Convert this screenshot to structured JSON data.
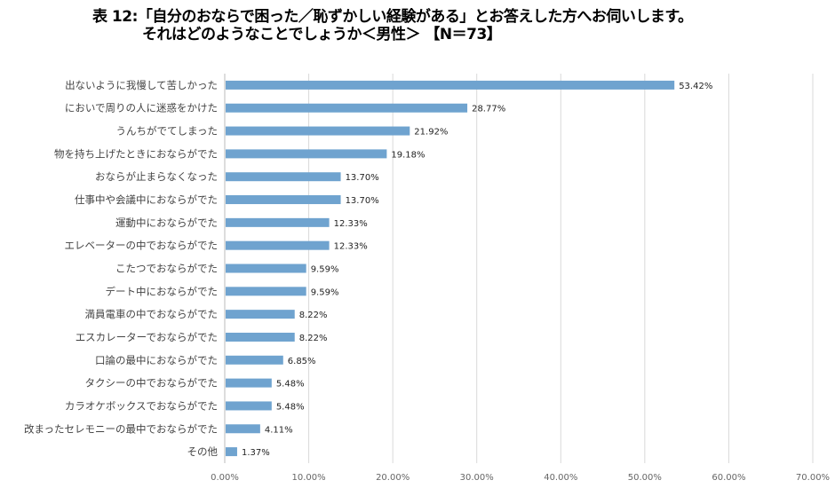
{
  "chart_data": {
    "type": "bar",
    "orientation": "horizontal",
    "title": "表 12:「自分のおならで困った／恥ずかしい経験がある」とお答えした方へお伺いします。",
    "subtitle": "それはどのようなことでしょうか＜男性＞ 【N＝73】",
    "categories": [
      "出ないように我慢して苦しかった",
      "においで周りの人に迷惑をかけた",
      "うんちがでてしまった",
      "物を持ち上げたときにおならがでた",
      "おならが止まらなくなった",
      "仕事中や会議中におならがでた",
      "運動中におならがでた",
      "エレベーターの中でおならがでた",
      "こたつでおならがでた",
      "デート中におならがでた",
      "満員電車の中でおならがでた",
      "エスカレーターでおならがでた",
      "口論の最中におならがでた",
      "タクシーの中でおならがでた",
      "カラオケボックスでおならがでた",
      "改まったセレモニーの最中でおならがでた",
      "その他"
    ],
    "values": [
      53.42,
      28.77,
      21.92,
      19.18,
      13.7,
      13.7,
      12.33,
      12.33,
      9.59,
      9.59,
      8.22,
      8.22,
      6.85,
      5.48,
      5.48,
      4.11,
      1.37
    ],
    "value_labels": [
      "53.42%",
      "28.77%",
      "21.92%",
      "19.18%",
      "13.70%",
      "13.70%",
      "12.33%",
      "12.33%",
      "9.59%",
      "9.59%",
      "8.22%",
      "8.22%",
      "6.85%",
      "5.48%",
      "5.48%",
      "4.11%",
      "1.37%"
    ],
    "xlim": [
      0,
      70
    ],
    "x_ticks": [
      0,
      10,
      20,
      30,
      40,
      50,
      60,
      70
    ],
    "x_tick_labels": [
      "0.00%",
      "10.00%",
      "20.00%",
      "30.00%",
      "40.00%",
      "50.00%",
      "60.00%",
      "70.00%"
    ],
    "grid": true,
    "xlabel": "",
    "ylabel": "",
    "bar_color": "#6fa3cf"
  }
}
